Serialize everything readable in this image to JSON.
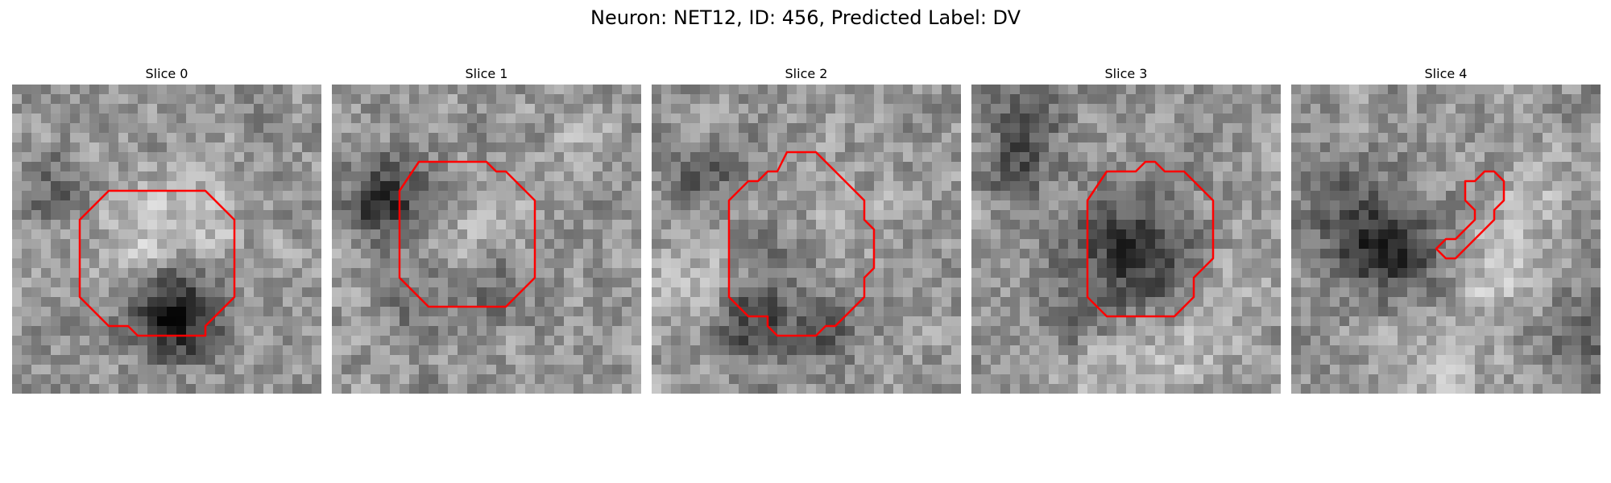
{
  "figure": {
    "title": "Neuron: NET12, ID: 456, Predicted Label: DV",
    "outline_color": "#ff0000",
    "colormap": "gray",
    "grid_size": 32,
    "slices": [
      {
        "title": "Slice 0",
        "seed": 11,
        "outline": [
          [
            12,
            11
          ],
          [
            20,
            11
          ],
          [
            23,
            14
          ],
          [
            23,
            22
          ],
          [
            20,
            25
          ],
          [
            20,
            26
          ],
          [
            13,
            26
          ],
          [
            12,
            25
          ],
          [
            10,
            25
          ],
          [
            7,
            22
          ],
          [
            7,
            14
          ],
          [
            10,
            11
          ]
        ],
        "dark_blobs": [
          [
            17,
            23,
            3.5,
            -90
          ],
          [
            15,
            24,
            2.5,
            -60
          ],
          [
            4,
            10,
            2.5,
            -50
          ]
        ],
        "bright_blobs": [
          [
            17,
            14,
            4,
            40
          ],
          [
            12,
            15,
            3,
            25
          ]
        ]
      },
      {
        "title": "Slice 1",
        "seed": 23,
        "outline": [
          [
            9,
            8
          ],
          [
            16,
            8
          ],
          [
            17,
            9
          ],
          [
            18,
            9
          ],
          [
            21,
            12
          ],
          [
            21,
            20
          ],
          [
            18,
            23
          ],
          [
            10,
            23
          ],
          [
            7,
            20
          ],
          [
            7,
            11
          ]
        ],
        "dark_blobs": [
          [
            6,
            11,
            3,
            -70
          ],
          [
            4,
            12,
            2,
            -60
          ],
          [
            16,
            20,
            3,
            -45
          ],
          [
            8,
            22,
            2.5,
            -40
          ]
        ],
        "bright_blobs": [
          [
            15,
            15,
            4,
            30
          ],
          [
            26,
            5,
            3,
            20
          ]
        ]
      },
      {
        "title": "Slice 2",
        "seed": 37,
        "outline": [
          [
            14,
            7
          ],
          [
            17,
            7
          ],
          [
            18,
            8
          ],
          [
            22,
            12
          ],
          [
            22,
            14
          ],
          [
            23,
            15
          ],
          [
            23,
            19
          ],
          [
            22,
            20
          ],
          [
            22,
            22
          ],
          [
            19,
            25
          ],
          [
            18,
            25
          ],
          [
            17,
            26
          ],
          [
            13,
            26
          ],
          [
            12,
            25
          ],
          [
            12,
            24
          ],
          [
            10,
            24
          ],
          [
            8,
            22
          ],
          [
            8,
            12
          ],
          [
            10,
            10
          ],
          [
            11,
            10
          ],
          [
            12,
            9
          ],
          [
            13,
            9
          ]
        ],
        "dark_blobs": [
          [
            10,
            24,
            3,
            -80
          ],
          [
            18,
            25,
            2.5,
            -60
          ],
          [
            5,
            9,
            2.5,
            -60
          ],
          [
            14,
            18,
            2.5,
            -35
          ]
        ],
        "bright_blobs": [
          [
            19,
            15,
            3,
            30
          ],
          [
            4,
            20,
            3,
            35
          ]
        ]
      },
      {
        "title": "Slice 3",
        "seed": 53,
        "outline": [
          [
            18,
            8
          ],
          [
            19,
            8
          ],
          [
            20,
            9
          ],
          [
            22,
            9
          ],
          [
            25,
            12
          ],
          [
            25,
            18
          ],
          [
            23,
            20
          ],
          [
            23,
            22
          ],
          [
            21,
            24
          ],
          [
            14,
            24
          ],
          [
            12,
            22
          ],
          [
            12,
            18
          ],
          [
            12,
            12
          ],
          [
            14,
            9
          ],
          [
            17,
            9
          ]
        ],
        "dark_blobs": [
          [
            16,
            17,
            4.5,
            -95
          ],
          [
            5,
            4,
            3,
            -65
          ],
          [
            4,
            9,
            2,
            -55
          ],
          [
            10,
            24,
            2.5,
            -45
          ]
        ],
        "bright_blobs": [
          [
            14,
            30,
            5,
            35
          ],
          [
            28,
            20,
            3,
            25
          ],
          [
            22,
            27,
            3,
            25
          ]
        ]
      },
      {
        "title": "Slice 4",
        "seed": 71,
        "outline": [
          [
            18,
            10
          ],
          [
            19,
            10
          ],
          [
            20,
            9
          ],
          [
            21,
            9
          ],
          [
            22,
            10
          ],
          [
            22,
            12
          ],
          [
            21,
            13
          ],
          [
            21,
            14
          ],
          [
            17,
            18
          ],
          [
            16,
            18
          ],
          [
            15,
            17
          ],
          [
            16,
            16
          ],
          [
            17,
            16
          ],
          [
            19,
            14
          ],
          [
            19,
            13
          ],
          [
            18,
            12
          ],
          [
            18,
            11
          ]
        ],
        "dark_blobs": [
          [
            7,
            14,
            4,
            -70
          ],
          [
            10,
            17,
            3.5,
            -75
          ],
          [
            3,
            9,
            3,
            -45
          ],
          [
            30,
            25,
            4,
            -55
          ]
        ],
        "bright_blobs": [
          [
            5,
            10,
            3,
            35
          ],
          [
            22,
            19,
            4,
            40
          ],
          [
            25,
            9,
            3,
            30
          ],
          [
            15,
            27,
            4,
            25
          ]
        ]
      }
    ]
  }
}
